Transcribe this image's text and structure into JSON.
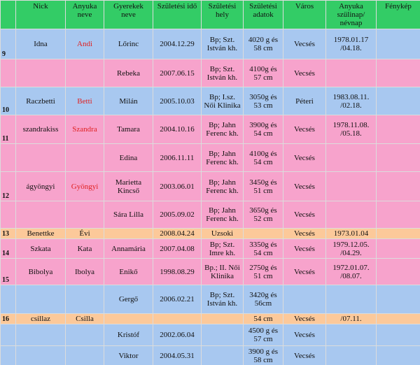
{
  "table": {
    "header": [
      null,
      "Nick",
      "Anyuka neve",
      "Gyerekek neve",
      "Születési idő",
      "Születési hely",
      "Születési adatok",
      "Város",
      "Anyuka szülinap/ névnap",
      "Fénykép"
    ],
    "name_color": "#e02020",
    "rows": [
      {
        "color": "#a8c8f0",
        "name_red": true,
        "cells": [
          "9",
          "Idna",
          "Andi",
          "Lőrinc",
          "2004.12.29",
          "Bp; Szt. István kh.",
          "4020 g és 58 cm",
          "Vecsés",
          "1978.01.17 /04.18.",
          null
        ]
      },
      {
        "color": "#f7a3cc",
        "cells": [
          null,
          null,
          null,
          "Rebeka",
          "2007.06.15",
          "Bp; Szt. István kh.",
          "4100g és 57 cm",
          "Vecsés",
          null,
          null
        ]
      },
      {
        "color": "#a8c8f0",
        "name_red": true,
        "cells": [
          "10",
          "Raczbetti",
          "Betti",
          "Milán",
          "2005.10.03",
          "Bp; I.sz. Női Klinika",
          "3050g és 53 cm",
          "Péteri",
          "1983.08.11. /02.18.",
          null
        ]
      },
      {
        "color": "#f7a3cc",
        "name_red": true,
        "cells": [
          "11",
          "szandrakiss",
          "Szandra",
          "Tamara",
          "2004.10.16",
          "Bp; Jahn Ferenc kh.",
          "3900g és 54 cm",
          "Vecsés",
          "1978.11.08. /05.18.",
          null
        ]
      },
      {
        "color": "#f7a3cc",
        "cells": [
          null,
          null,
          null,
          "Edina",
          "2006.11.11",
          "Bp; Jahn Ferenc kh.",
          "4100g és 54 cm",
          "Vecsés",
          null,
          null
        ]
      },
      {
        "color": "#f7a3cc",
        "name_red": true,
        "cells": [
          "12",
          "ágyöngyi",
          "Gyöngyi",
          "Marietta Kincső",
          "2003.06.01",
          "Bp; Jahn Ferenc kh.",
          "3450g és 51 cm",
          "Vecsés",
          null,
          null
        ]
      },
      {
        "color": "#f7a3cc",
        "cells": [
          null,
          null,
          null,
          "Sára Lilla",
          "2005.09.02",
          "Bp; Jahn Ferenc kh.",
          "3650g és 52 cm",
          "Vecsés",
          null,
          null
        ]
      },
      {
        "color": "#fcc99a",
        "cells": [
          "13",
          "Benettke",
          "Évi",
          null,
          "2008.04.24",
          "Uzsoki",
          null,
          "Vecsés",
          "1973.01.04",
          null
        ]
      },
      {
        "color": "#f7a3cc",
        "cells": [
          "14",
          "Szkata",
          "Kata",
          "Annamária",
          "2007.04.08",
          "Bp; Szt. Imre kh.",
          "3350g és 54 cm",
          "Vecsés",
          "1979.12.05. /04.29.",
          null
        ]
      },
      {
        "color": "#f7a3cc",
        "cells": [
          "15",
          "Bibolya",
          "Ibolya",
          "Enikő",
          "1998.08.29",
          "Bp.; II. Női Klinika",
          "2750g és 51 cm",
          "Vecsés",
          "1972.01.07. /08.07.",
          null
        ]
      },
      {
        "color": "#a8c8f0",
        "cells": [
          null,
          null,
          null,
          "Gergő",
          "2006.02.21",
          "Bp; Szt. István kh.",
          "3420g és 56cm",
          null,
          null,
          null
        ]
      },
      {
        "color": "#fcc99a",
        "cells": [
          "16",
          "csillaz",
          "Csilla",
          null,
          null,
          null,
          "54 cm",
          "Vecsés",
          "/07.11.",
          null
        ]
      },
      {
        "color": "#a8c8f0",
        "cells": [
          null,
          null,
          null,
          "Kristóf",
          "2002.06.04",
          null,
          "4500 g és 57 cm",
          "Vecsés",
          null,
          null
        ]
      },
      {
        "color": "#a8c8f0",
        "cells": [
          null,
          null,
          null,
          "Viktor",
          "2004.05.31",
          null,
          "3900 g és 58 cm",
          "Vecsés",
          null,
          null
        ]
      }
    ]
  }
}
